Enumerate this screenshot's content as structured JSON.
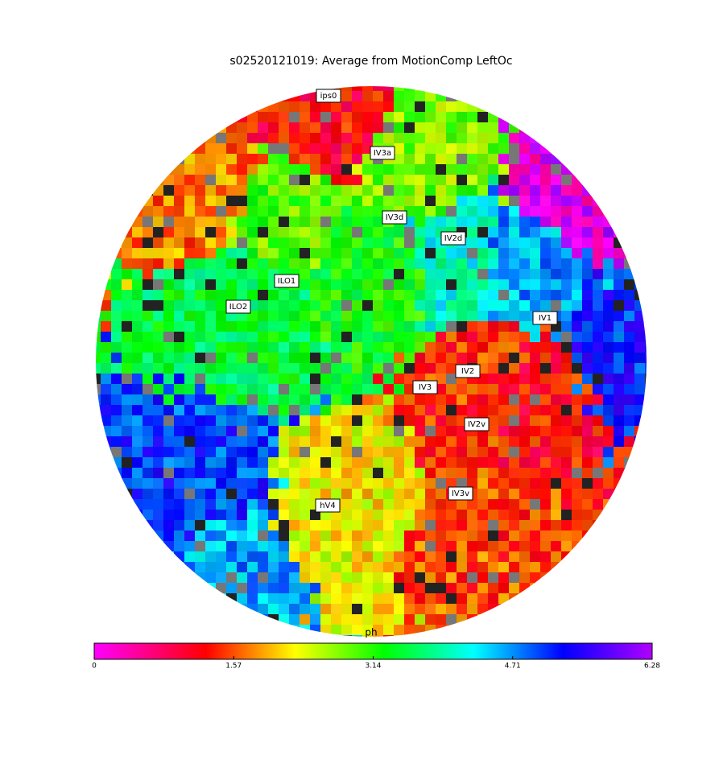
{
  "title": "s02520121019: Average from MotionComp LeftOc",
  "regions": [
    "ips0",
    "IV3a",
    "IV3d",
    "IV2d",
    "ILO1",
    "ILO2",
    "IV1",
    "IV2",
    "IV3",
    "IV2v",
    "IV3v",
    "hV4"
  ],
  "colorbar": {
    "label": "ph",
    "range": [
      0,
      6.28
    ],
    "ticks": [
      0,
      1.57,
      3.14,
      4.71,
      6.28
    ]
  }
}
